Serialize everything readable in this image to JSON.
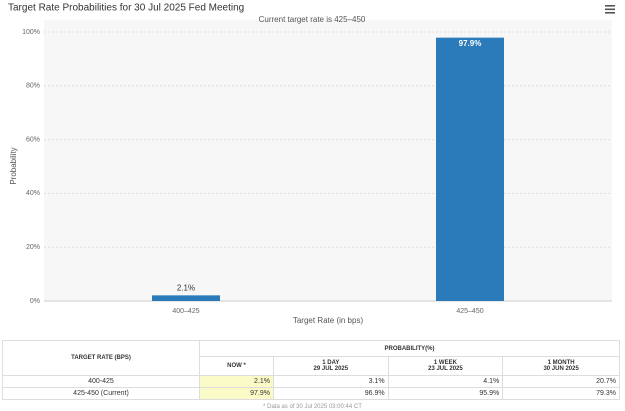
{
  "chart_data": {
    "type": "bar",
    "title": "Target Rate Probabilities for 30 Jul 2025 Fed Meeting",
    "subtitle": "Current target rate is 425–450",
    "categories": [
      "400–425",
      "425–450"
    ],
    "values": [
      2.1,
      97.9
    ],
    "value_labels": [
      "2.1%",
      "97.9%"
    ],
    "color": "#2b7bba",
    "x_label": "Target Rate (in bps)",
    "y_label": "Probability",
    "ylim": [
      0,
      100
    ],
    "yticks": [
      {
        "value": 0,
        "label": "0%"
      },
      {
        "value": 20,
        "label": "20%"
      },
      {
        "value": 40,
        "label": "40%"
      },
      {
        "value": 60,
        "label": "60%"
      },
      {
        "value": 80,
        "label": "80%"
      },
      {
        "value": 100,
        "label": "100%"
      }
    ],
    "grid": true
  },
  "table": {
    "target_rate_header": "TARGET RATE (BPS)",
    "probability_header": "PROBABILITY(%)",
    "columns": [
      {
        "period": "NOW *"
      },
      {
        "period": "1 DAY",
        "date": "29 JUL 2025"
      },
      {
        "period": "1 WEEK",
        "date": "23 JUL 2025"
      },
      {
        "period": "1 MONTH",
        "date": "30 JUN 2025"
      }
    ],
    "rows": [
      [
        "400-425",
        "2.1%",
        "3.1%",
        "4.1%",
        "20.7%"
      ],
      [
        "425-450 (Current)",
        "97.9%",
        "96.9%",
        "95.9%",
        "79.3%"
      ]
    ],
    "footnote": "* Data as of 30 Jul 2025 03:00:44 CT"
  }
}
